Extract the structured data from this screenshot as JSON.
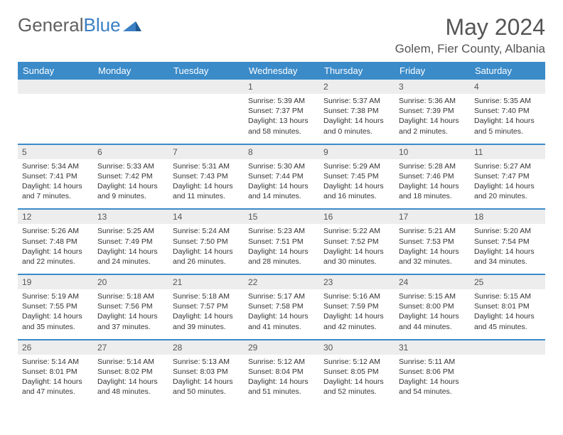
{
  "logo": {
    "part1": "General",
    "part2": "Blue"
  },
  "title": "May 2024",
  "location": "Golem, Fier County, Albania",
  "colors": {
    "header_bg": "#3b8bc9",
    "header_text": "#ffffff",
    "daynum_bg": "#ededed",
    "rule": "#3b8bc9",
    "title_color": "#555555",
    "body_text": "#333333"
  },
  "weekdays": [
    "Sunday",
    "Monday",
    "Tuesday",
    "Wednesday",
    "Thursday",
    "Friday",
    "Saturday"
  ],
  "weeks": [
    [
      {
        "blank": true
      },
      {
        "blank": true
      },
      {
        "blank": true
      },
      {
        "day": "1",
        "sunrise": "Sunrise: 5:39 AM",
        "sunset": "Sunset: 7:37 PM",
        "daylight": "Daylight: 13 hours and 58 minutes."
      },
      {
        "day": "2",
        "sunrise": "Sunrise: 5:37 AM",
        "sunset": "Sunset: 7:38 PM",
        "daylight": "Daylight: 14 hours and 0 minutes."
      },
      {
        "day": "3",
        "sunrise": "Sunrise: 5:36 AM",
        "sunset": "Sunset: 7:39 PM",
        "daylight": "Daylight: 14 hours and 2 minutes."
      },
      {
        "day": "4",
        "sunrise": "Sunrise: 5:35 AM",
        "sunset": "Sunset: 7:40 PM",
        "daylight": "Daylight: 14 hours and 5 minutes."
      }
    ],
    [
      {
        "day": "5",
        "sunrise": "Sunrise: 5:34 AM",
        "sunset": "Sunset: 7:41 PM",
        "daylight": "Daylight: 14 hours and 7 minutes."
      },
      {
        "day": "6",
        "sunrise": "Sunrise: 5:33 AM",
        "sunset": "Sunset: 7:42 PM",
        "daylight": "Daylight: 14 hours and 9 minutes."
      },
      {
        "day": "7",
        "sunrise": "Sunrise: 5:31 AM",
        "sunset": "Sunset: 7:43 PM",
        "daylight": "Daylight: 14 hours and 11 minutes."
      },
      {
        "day": "8",
        "sunrise": "Sunrise: 5:30 AM",
        "sunset": "Sunset: 7:44 PM",
        "daylight": "Daylight: 14 hours and 14 minutes."
      },
      {
        "day": "9",
        "sunrise": "Sunrise: 5:29 AM",
        "sunset": "Sunset: 7:45 PM",
        "daylight": "Daylight: 14 hours and 16 minutes."
      },
      {
        "day": "10",
        "sunrise": "Sunrise: 5:28 AM",
        "sunset": "Sunset: 7:46 PM",
        "daylight": "Daylight: 14 hours and 18 minutes."
      },
      {
        "day": "11",
        "sunrise": "Sunrise: 5:27 AM",
        "sunset": "Sunset: 7:47 PM",
        "daylight": "Daylight: 14 hours and 20 minutes."
      }
    ],
    [
      {
        "day": "12",
        "sunrise": "Sunrise: 5:26 AM",
        "sunset": "Sunset: 7:48 PM",
        "daylight": "Daylight: 14 hours and 22 minutes."
      },
      {
        "day": "13",
        "sunrise": "Sunrise: 5:25 AM",
        "sunset": "Sunset: 7:49 PM",
        "daylight": "Daylight: 14 hours and 24 minutes."
      },
      {
        "day": "14",
        "sunrise": "Sunrise: 5:24 AM",
        "sunset": "Sunset: 7:50 PM",
        "daylight": "Daylight: 14 hours and 26 minutes."
      },
      {
        "day": "15",
        "sunrise": "Sunrise: 5:23 AM",
        "sunset": "Sunset: 7:51 PM",
        "daylight": "Daylight: 14 hours and 28 minutes."
      },
      {
        "day": "16",
        "sunrise": "Sunrise: 5:22 AM",
        "sunset": "Sunset: 7:52 PM",
        "daylight": "Daylight: 14 hours and 30 minutes."
      },
      {
        "day": "17",
        "sunrise": "Sunrise: 5:21 AM",
        "sunset": "Sunset: 7:53 PM",
        "daylight": "Daylight: 14 hours and 32 minutes."
      },
      {
        "day": "18",
        "sunrise": "Sunrise: 5:20 AM",
        "sunset": "Sunset: 7:54 PM",
        "daylight": "Daylight: 14 hours and 34 minutes."
      }
    ],
    [
      {
        "day": "19",
        "sunrise": "Sunrise: 5:19 AM",
        "sunset": "Sunset: 7:55 PM",
        "daylight": "Daylight: 14 hours and 35 minutes."
      },
      {
        "day": "20",
        "sunrise": "Sunrise: 5:18 AM",
        "sunset": "Sunset: 7:56 PM",
        "daylight": "Daylight: 14 hours and 37 minutes."
      },
      {
        "day": "21",
        "sunrise": "Sunrise: 5:18 AM",
        "sunset": "Sunset: 7:57 PM",
        "daylight": "Daylight: 14 hours and 39 minutes."
      },
      {
        "day": "22",
        "sunrise": "Sunrise: 5:17 AM",
        "sunset": "Sunset: 7:58 PM",
        "daylight": "Daylight: 14 hours and 41 minutes."
      },
      {
        "day": "23",
        "sunrise": "Sunrise: 5:16 AM",
        "sunset": "Sunset: 7:59 PM",
        "daylight": "Daylight: 14 hours and 42 minutes."
      },
      {
        "day": "24",
        "sunrise": "Sunrise: 5:15 AM",
        "sunset": "Sunset: 8:00 PM",
        "daylight": "Daylight: 14 hours and 44 minutes."
      },
      {
        "day": "25",
        "sunrise": "Sunrise: 5:15 AM",
        "sunset": "Sunset: 8:01 PM",
        "daylight": "Daylight: 14 hours and 45 minutes."
      }
    ],
    [
      {
        "day": "26",
        "sunrise": "Sunrise: 5:14 AM",
        "sunset": "Sunset: 8:01 PM",
        "daylight": "Daylight: 14 hours and 47 minutes."
      },
      {
        "day": "27",
        "sunrise": "Sunrise: 5:14 AM",
        "sunset": "Sunset: 8:02 PM",
        "daylight": "Daylight: 14 hours and 48 minutes."
      },
      {
        "day": "28",
        "sunrise": "Sunrise: 5:13 AM",
        "sunset": "Sunset: 8:03 PM",
        "daylight": "Daylight: 14 hours and 50 minutes."
      },
      {
        "day": "29",
        "sunrise": "Sunrise: 5:12 AM",
        "sunset": "Sunset: 8:04 PM",
        "daylight": "Daylight: 14 hours and 51 minutes."
      },
      {
        "day": "30",
        "sunrise": "Sunrise: 5:12 AM",
        "sunset": "Sunset: 8:05 PM",
        "daylight": "Daylight: 14 hours and 52 minutes."
      },
      {
        "day": "31",
        "sunrise": "Sunrise: 5:11 AM",
        "sunset": "Sunset: 8:06 PM",
        "daylight": "Daylight: 14 hours and 54 minutes."
      },
      {
        "blank": true
      }
    ]
  ]
}
